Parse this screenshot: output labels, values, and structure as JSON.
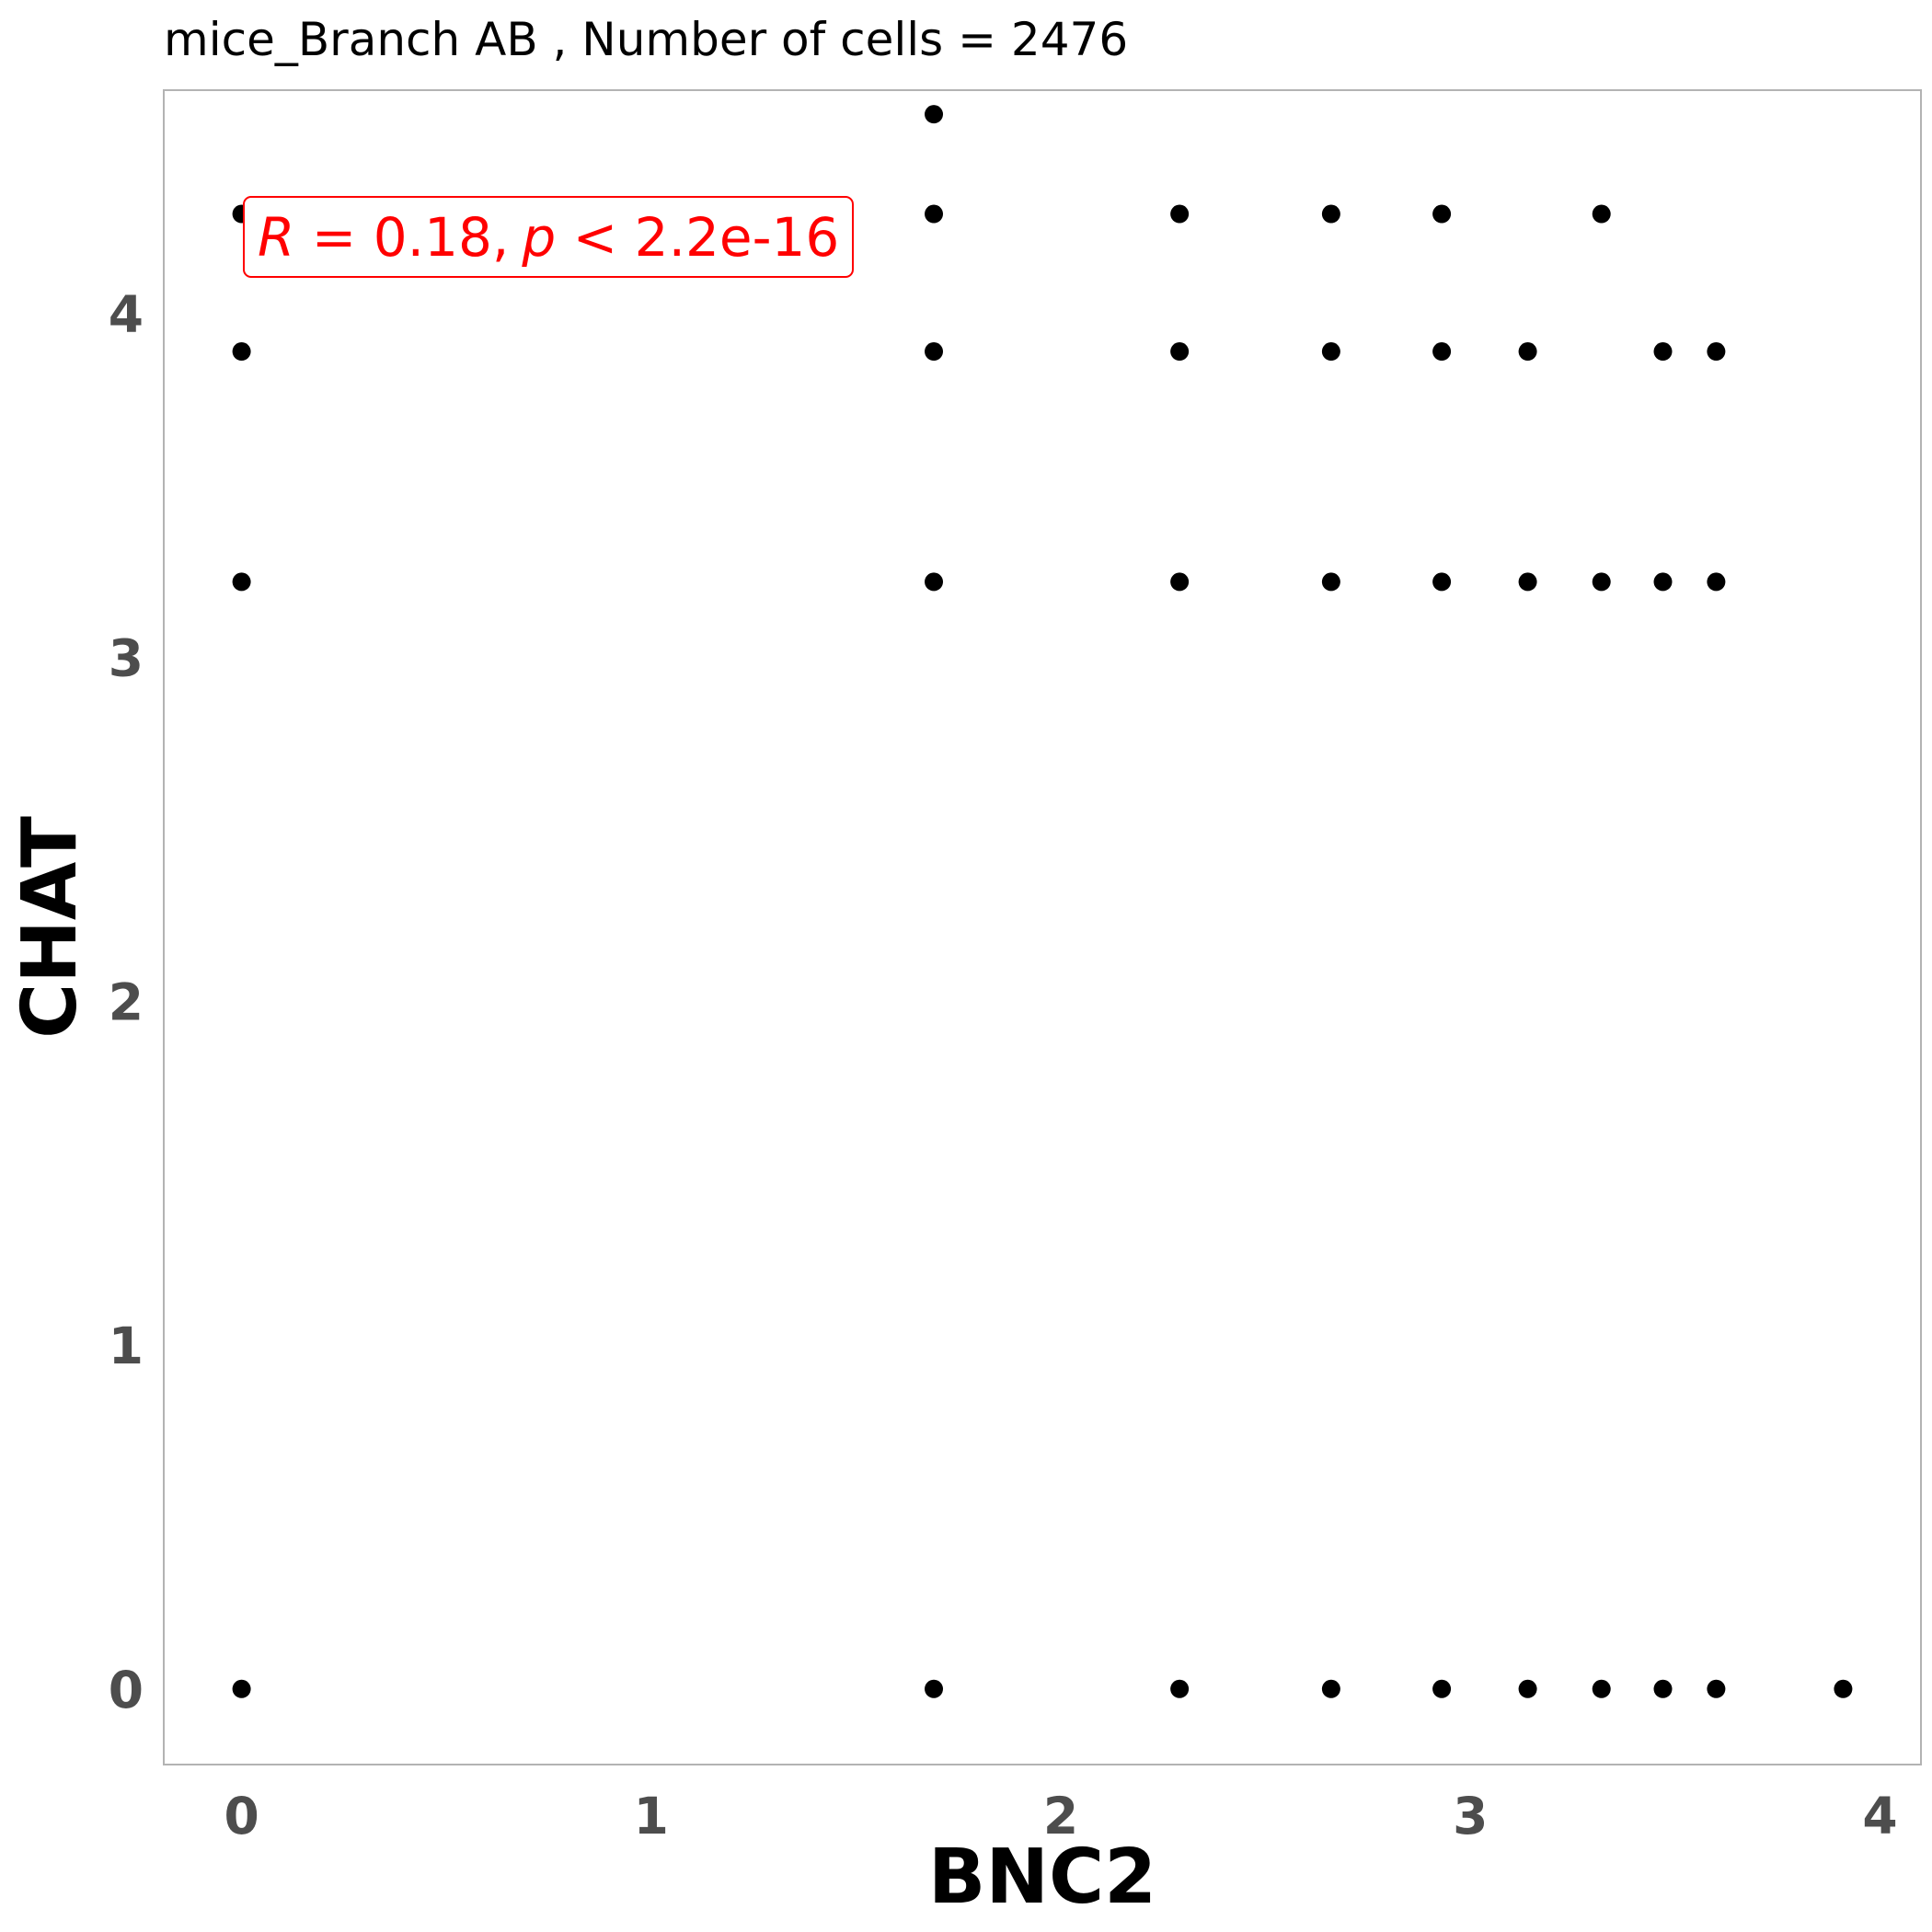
{
  "chart_data": {
    "type": "scatter",
    "title": "mice_Branch AB , Number of cells =  2476",
    "xlabel": "BNC2",
    "ylabel": "CHAT",
    "xlim": [
      -0.19,
      4.1
    ],
    "ylim": [
      -0.22,
      4.65
    ],
    "xticks": [
      0,
      1,
      2,
      3,
      4
    ],
    "yticks": [
      0,
      1,
      2,
      3,
      4
    ],
    "grid": false,
    "point_color": "#000000",
    "annotation": {
      "r_label": "R",
      "r_value": " = 0.18,",
      "p_label": "p",
      "p_value": " < 2.2e-16",
      "color": "#ff0000"
    },
    "points": [
      {
        "x": 0,
        "y": 4.29
      },
      {
        "x": 0,
        "y": 3.89
      },
      {
        "x": 0,
        "y": 3.22
      },
      {
        "x": 0,
        "y": 0
      },
      {
        "x": 1.69,
        "y": 4.58
      },
      {
        "x": 1.69,
        "y": 4.29
      },
      {
        "x": 1.69,
        "y": 3.89
      },
      {
        "x": 1.69,
        "y": 3.22
      },
      {
        "x": 1.69,
        "y": 0
      },
      {
        "x": 2.29,
        "y": 4.29
      },
      {
        "x": 2.29,
        "y": 3.89
      },
      {
        "x": 2.29,
        "y": 3.22
      },
      {
        "x": 2.29,
        "y": 0
      },
      {
        "x": 2.66,
        "y": 4.29
      },
      {
        "x": 2.66,
        "y": 3.89
      },
      {
        "x": 2.66,
        "y": 3.22
      },
      {
        "x": 2.66,
        "y": 0
      },
      {
        "x": 2.93,
        "y": 4.29
      },
      {
        "x": 2.93,
        "y": 3.89
      },
      {
        "x": 2.93,
        "y": 3.22
      },
      {
        "x": 2.93,
        "y": 0
      },
      {
        "x": 3.14,
        "y": 3.89
      },
      {
        "x": 3.14,
        "y": 3.22
      },
      {
        "x": 3.14,
        "y": 0
      },
      {
        "x": 3.32,
        "y": 4.29
      },
      {
        "x": 3.32,
        "y": 3.22
      },
      {
        "x": 3.32,
        "y": 0
      },
      {
        "x": 3.47,
        "y": 3.89
      },
      {
        "x": 3.47,
        "y": 3.22
      },
      {
        "x": 3.47,
        "y": 0
      },
      {
        "x": 3.6,
        "y": 3.89
      },
      {
        "x": 3.6,
        "y": 3.22
      },
      {
        "x": 3.6,
        "y": 0
      },
      {
        "x": 3.91,
        "y": 0
      }
    ]
  }
}
